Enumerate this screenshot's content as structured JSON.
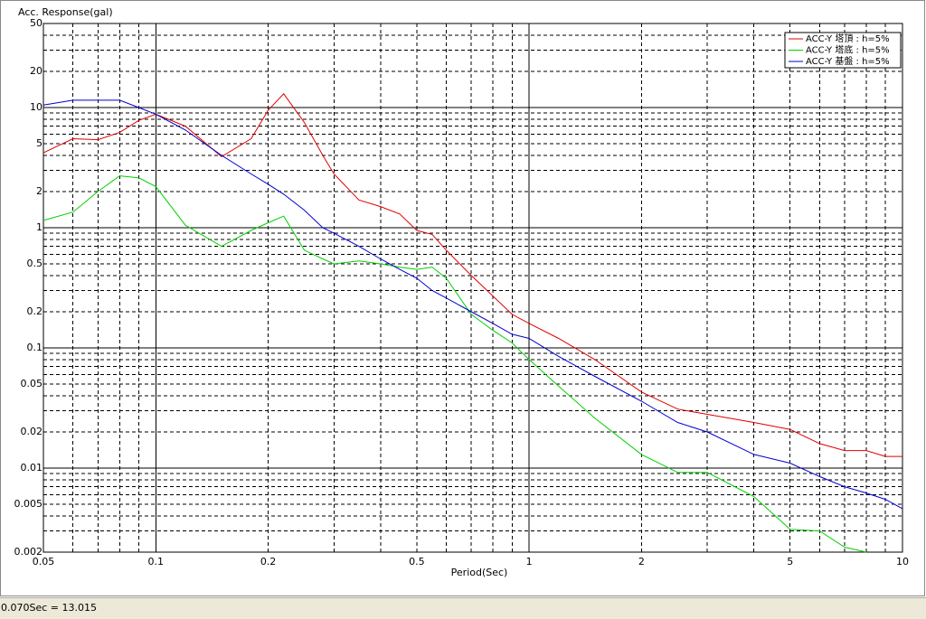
{
  "chart_data": {
    "type": "line",
    "y_label": "Acc. Response(gal)",
    "x_label": "Period(Sec)",
    "xscale": "log",
    "yscale": "log",
    "grid": true,
    "legend": "top-right",
    "xlim": [
      0.05,
      10
    ],
    "ylim": [
      0.002,
      50
    ],
    "xticks": [
      0.05,
      0.1,
      0.2,
      0.5,
      1,
      2,
      5,
      10
    ],
    "yticks": [
      0.002,
      0.005,
      0.01,
      0.02,
      0.05,
      0.1,
      0.2,
      0.5,
      1,
      2,
      5,
      10,
      20,
      50
    ],
    "x_minor_grid": [
      0.06,
      0.07,
      0.08,
      0.09,
      0.3,
      0.4,
      0.6,
      0.7,
      0.8,
      0.9,
      3,
      4,
      6,
      7,
      8,
      9
    ],
    "y_minor_grid": [
      0.003,
      0.004,
      0.006,
      0.007,
      0.008,
      0.009,
      0.03,
      0.04,
      0.06,
      0.07,
      0.08,
      0.09,
      0.3,
      0.4,
      0.6,
      0.7,
      0.8,
      0.9,
      3,
      4,
      6,
      7,
      8,
      9,
      30,
      40
    ],
    "x": [
      0.05,
      0.06,
      0.07,
      0.08,
      0.09,
      0.1,
      0.12,
      0.15,
      0.18,
      0.2,
      0.22,
      0.25,
      0.28,
      0.3,
      0.35,
      0.4,
      0.45,
      0.5,
      0.55,
      0.6,
      0.7,
      0.8,
      0.9,
      1,
      1.2,
      1.5,
      2,
      2.5,
      3,
      4,
      5,
      6,
      7,
      8,
      9,
      10
    ],
    "series": [
      {
        "name": "ACC-Y 塔頂 : h=5%",
        "color": "#e00000",
        "values": [
          4.2,
          5.5,
          5.4,
          6.2,
          7.8,
          8.8,
          7,
          3.9,
          5.5,
          9.5,
          13,
          7.5,
          4,
          2.8,
          1.7,
          1.5,
          1.3,
          0.95,
          0.88,
          0.65,
          0.4,
          0.27,
          0.19,
          0.16,
          0.12,
          0.08,
          0.043,
          0.031,
          0.028,
          0.024,
          0.021,
          0.016,
          0.014,
          0.014,
          0.0125,
          0.0125
        ]
      },
      {
        "name": "ACC-Y 塔底 : h=5%",
        "color": "#00d000",
        "values": [
          1.15,
          1.35,
          2,
          2.7,
          2.6,
          2.2,
          1.05,
          0.7,
          0.95,
          1.1,
          1.25,
          0.65,
          0.55,
          0.5,
          0.53,
          0.5,
          0.47,
          0.45,
          0.47,
          0.38,
          0.19,
          0.14,
          0.11,
          0.08,
          0.048,
          0.026,
          0.013,
          0.0092,
          0.0092,
          0.0058,
          0.0031,
          0.003,
          0.0022,
          0.002,
          null,
          null
        ]
      },
      {
        "name": "ACC-Y 基盤 : h=5%",
        "color": "#0000d0",
        "values": [
          10.5,
          11.5,
          11.5,
          11.5,
          10,
          8.8,
          6.5,
          4,
          2.8,
          2.3,
          1.9,
          1.4,
          1,
          0.9,
          0.7,
          0.55,
          0.45,
          0.38,
          0.3,
          0.26,
          0.2,
          0.16,
          0.13,
          0.12,
          0.085,
          0.058,
          0.036,
          0.024,
          0.02,
          0.013,
          0.011,
          0.0085,
          0.007,
          0.0062,
          0.0055,
          0.0046
        ]
      }
    ]
  },
  "status_bar": "0.070Sec = 13.015"
}
